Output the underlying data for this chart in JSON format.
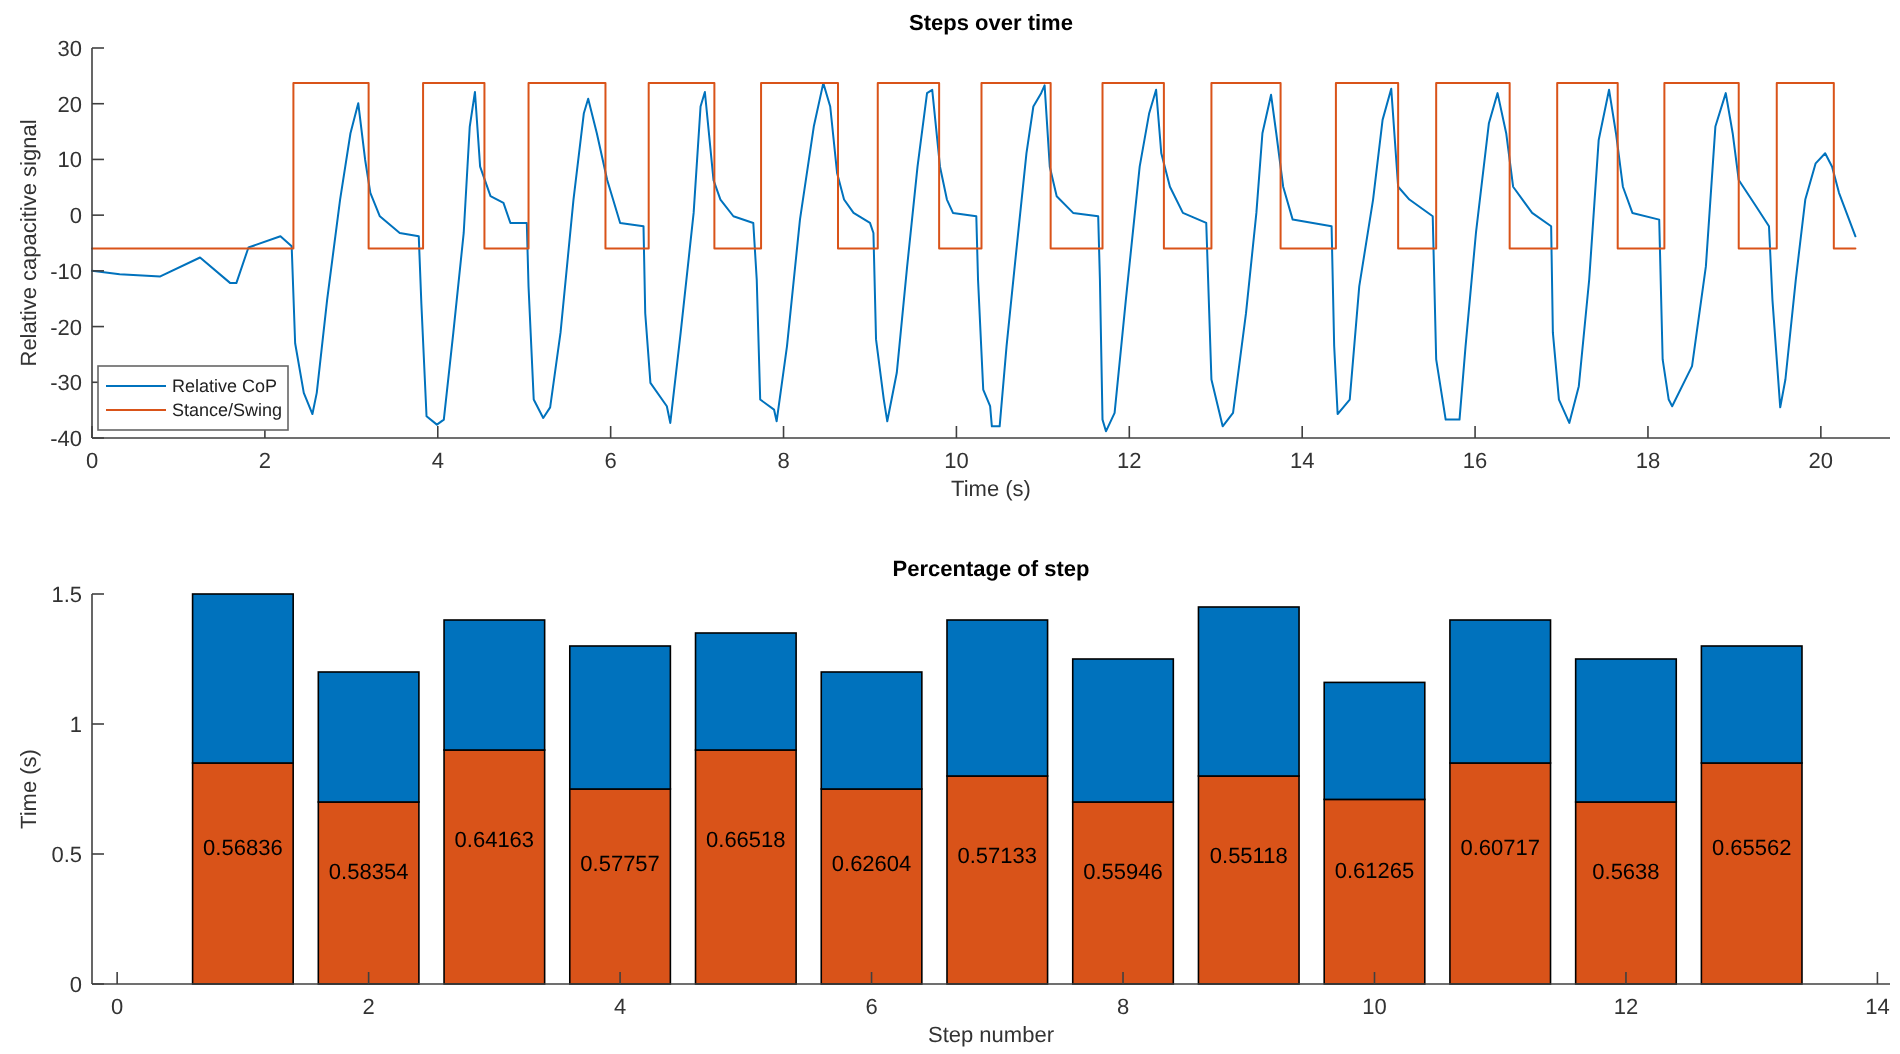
{
  "chart_data": [
    {
      "type": "line",
      "title": "Steps over time",
      "xlabel": "Time (s)",
      "ylabel": "Relative capacitive signal",
      "xlim": [
        0,
        20.8
      ],
      "xticks": [
        0,
        2,
        4,
        6,
        8,
        10,
        12,
        14,
        16,
        18,
        20
      ],
      "ylim": [
        -40,
        30
      ],
      "yticks": [
        -40,
        -30,
        -20,
        -10,
        0,
        10,
        20,
        30
      ],
      "legend": "bottom left",
      "series": [
        {
          "name": "Relative CoP",
          "color": "#0072bd",
          "type": "line",
          "x": [
            0,
            0.32,
            0.79,
            1.25,
            1.6,
            1.67,
            1.81,
            2.18,
            2.31,
            2.35,
            2.45,
            2.55,
            2.6,
            2.72,
            2.87,
            2.99,
            3.08,
            3.16,
            3.22,
            3.33,
            3.56,
            3.78,
            3.81,
            3.87,
            3.99,
            4.07,
            4.18,
            4.3,
            4.37,
            4.43,
            4.49,
            4.61,
            4.76,
            4.84,
            5.03,
            5.05,
            5.11,
            5.22,
            5.3,
            5.42,
            5.57,
            5.69,
            5.74,
            5.84,
            5.96,
            6.11,
            6.38,
            6.4,
            6.46,
            6.65,
            6.69,
            6.81,
            6.96,
            7.04,
            7.09,
            7.19,
            7.27,
            7.42,
            7.65,
            7.69,
            7.73,
            7.89,
            7.92,
            8.04,
            8.19,
            8.35,
            8.46,
            8.54,
            8.62,
            8.7,
            8.81,
            9.0,
            9.04,
            9.07,
            9.16,
            9.2,
            9.31,
            9.43,
            9.55,
            9.66,
            9.72,
            9.81,
            9.89,
            9.96,
            10.23,
            10.25,
            10.31,
            10.39,
            10.41,
            10.5,
            10.58,
            10.69,
            10.81,
            10.89,
            10.98,
            11.02,
            11.08,
            11.16,
            11.35,
            11.64,
            11.66,
            11.69,
            11.73,
            11.83,
            11.96,
            12.12,
            12.23,
            12.31,
            12.37,
            12.47,
            12.62,
            12.89,
            12.95,
            13.08,
            13.2,
            13.35,
            13.47,
            13.54,
            13.64,
            13.7,
            13.78,
            13.89,
            14.34,
            14.37,
            14.41,
            14.55,
            14.66,
            14.82,
            14.93,
            15.03,
            15.11,
            15.24,
            15.51,
            15.55,
            15.66,
            15.82,
            15.89,
            16.01,
            16.16,
            16.26,
            16.36,
            16.44,
            16.66,
            16.88,
            16.9,
            16.97,
            17.09,
            17.2,
            17.32,
            17.43,
            17.55,
            17.63,
            17.71,
            17.82,
            18.13,
            18.17,
            18.24,
            18.28,
            18.51,
            18.67,
            18.78,
            18.9,
            18.98,
            19.05,
            19.25,
            19.4,
            19.44,
            19.53,
            19.59,
            19.71,
            19.82,
            19.94,
            20.05,
            20.13,
            20.21,
            20.4
          ],
          "values": [
            -10,
            -10.6,
            -11,
            -7.6,
            -12.2,
            -12.2,
            -5.8,
            -3.8,
            -5.6,
            -23,
            -31.9,
            -35.7,
            -31.9,
            -15.2,
            2.8,
            14.7,
            20.1,
            9.9,
            4,
            -0.2,
            -3.2,
            -3.8,
            -15.8,
            -36.1,
            -37.6,
            -36.7,
            -21.1,
            -3.2,
            15.9,
            22.1,
            8.7,
            3.4,
            2.2,
            -1.4,
            -1.4,
            -12.8,
            -33.1,
            -36.4,
            -34.5,
            -21.1,
            2.8,
            18.3,
            20.9,
            14.7,
            6.3,
            -1.4,
            -2,
            -17.6,
            -30.1,
            -34.3,
            -37.3,
            -21.1,
            0.4,
            19.5,
            22.1,
            6.3,
            2.8,
            -0.2,
            -1.4,
            -11.6,
            -33.1,
            -34.9,
            -37,
            -23.5,
            -0.8,
            15.9,
            23.7,
            19.5,
            7.5,
            2.8,
            0.4,
            -1.4,
            -3.2,
            -22.3,
            -33.1,
            -37,
            -28.3,
            -9.2,
            8.7,
            21.9,
            22.5,
            8.7,
            2.8,
            0.4,
            -0.2,
            -11.6,
            -31.3,
            -34.3,
            -37.9,
            -37.9,
            -23.5,
            -6.8,
            11.1,
            19.5,
            21.9,
            23.3,
            8.7,
            3.4,
            0.4,
            -0.2,
            -11.6,
            -36.7,
            -38.8,
            -35.5,
            -15.2,
            8.7,
            18.3,
            22.5,
            11.1,
            5.1,
            0.4,
            -1.4,
            -29.5,
            -37.9,
            -35.5,
            -17.6,
            0.4,
            14.7,
            21.6,
            14.7,
            5.1,
            -0.8,
            -2,
            -23.5,
            -35.7,
            -33.1,
            -12.8,
            2.8,
            17.1,
            22.7,
            5.1,
            2.8,
            -0.2,
            -25.9,
            -36.7,
            -36.7,
            -23.5,
            -3.2,
            16.5,
            21.9,
            14.7,
            5.1,
            0.4,
            -2,
            -21.1,
            -33.1,
            -37.3,
            -30.7,
            -11.6,
            13.5,
            22.5,
            14.7,
            5.1,
            0.4,
            -0.8,
            -25.9,
            -33.1,
            -34.3,
            -27.1,
            -9.2,
            15.9,
            21.9,
            14.7,
            6.3,
            1.6,
            -2,
            -15.2,
            -34.5,
            -29.5,
            -11.6,
            2.8,
            9.3,
            11.1,
            8.7,
            4,
            -3.8
          ]
        },
        {
          "name": "Stance/Swing",
          "color": "#d95319",
          "type": "step",
          "x": [
            0,
            2.33,
            3.2,
            3.83,
            4.54,
            5.05,
            5.94,
            6.44,
            7.2,
            7.74,
            8.63,
            9.09,
            9.8,
            10.29,
            11.09,
            11.69,
            12.4,
            12.95,
            13.75,
            14.39,
            15.11,
            15.55,
            16.4,
            16.95,
            17.65,
            18.19,
            19.05,
            19.49,
            20.15,
            20.4
          ],
          "values": [
            -6,
            23.7,
            -6,
            23.7,
            -6,
            23.7,
            -6,
            23.7,
            -6,
            23.7,
            -6,
            23.7,
            -6,
            23.7,
            -6,
            23.7,
            -6,
            23.7,
            -6,
            23.7,
            -6,
            23.7,
            -6,
            23.7,
            -6,
            23.7,
            -6,
            23.7,
            -6,
            -6
          ]
        }
      ]
    },
    {
      "type": "bar",
      "title": "Percentage of step",
      "xlabel": "Step number",
      "ylabel": "Time (s)",
      "stacked": true,
      "annotations": [
        "0.56836",
        "0.58354",
        "0.64163",
        "0.57757",
        "0.66518",
        "0.62604",
        "0.57133",
        "0.55946",
        "0.55118",
        "0.61265",
        "0.60717",
        "0.5638",
        "0.65562"
      ],
      "x": [
        1,
        2,
        3,
        4,
        5,
        6,
        7,
        8,
        9,
        10,
        11,
        12,
        13
      ],
      "xlim": [
        -0.2,
        14.1
      ],
      "xticks": [
        0,
        2,
        4,
        6,
        8,
        10,
        12,
        14
      ],
      "ylim": [
        0,
        1.5
      ],
      "yticks": [
        0,
        0.5,
        1,
        1.5
      ],
      "series": [
        {
          "color": "#d95319",
          "values": [
            0.85,
            0.7,
            0.9,
            0.75,
            0.9,
            0.75,
            0.8,
            0.7,
            0.8,
            0.71,
            0.85,
            0.7,
            0.85
          ]
        },
        {
          "color": "#0072bd",
          "values": [
            0.65,
            0.5,
            0.5,
            0.55,
            0.45,
            0.45,
            0.6,
            0.55,
            0.65,
            0.45,
            0.55,
            0.55,
            0.45
          ]
        }
      ]
    }
  ]
}
